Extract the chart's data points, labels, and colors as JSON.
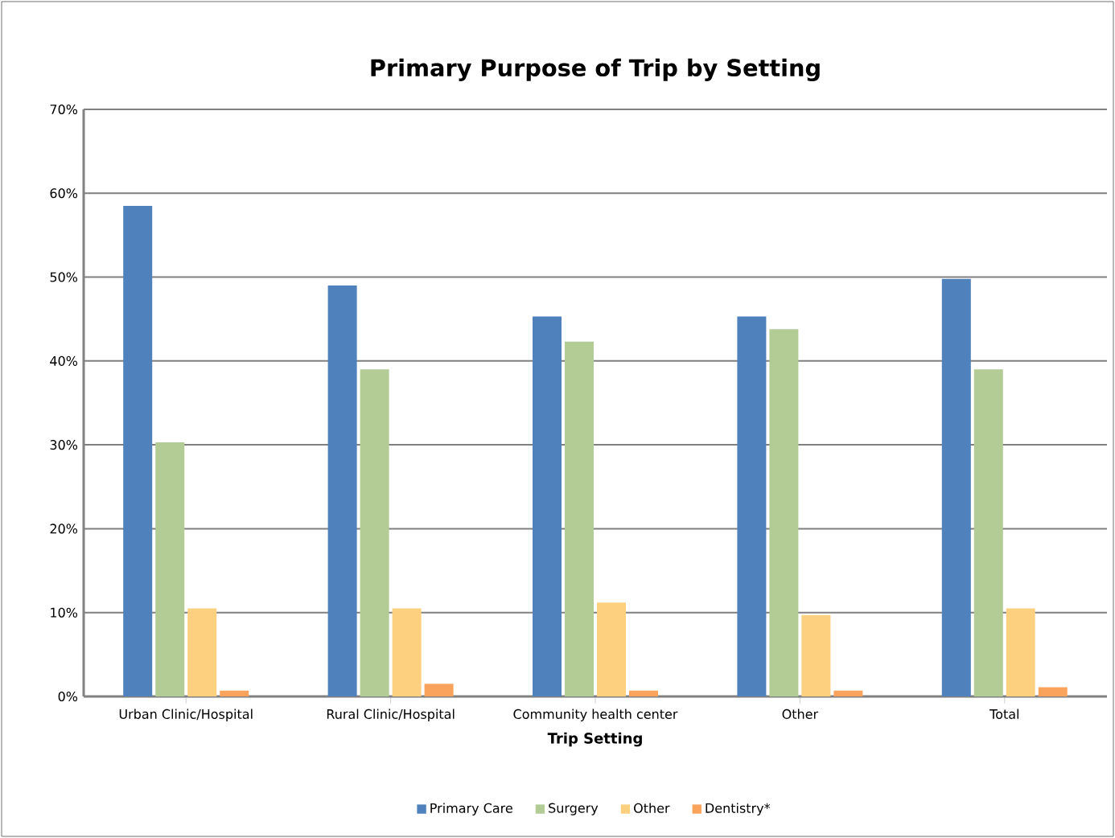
{
  "chart_data": {
    "type": "bar",
    "title": "Primary Purpose of Trip by Setting",
    "xlabel": "Trip Setting",
    "categories": [
      "Urban Clinic/Hospital",
      "Rural Clinic/Hospital",
      "Community health center",
      "Other",
      "Total"
    ],
    "series": [
      {
        "name": "Primary Care",
        "color": "#4f81bd",
        "values": [
          58.5,
          49,
          45.3,
          45.3,
          49.8
        ]
      },
      {
        "name": "Surgery",
        "color": "#b3cc96",
        "values": [
          30.3,
          39,
          42.3,
          43.8,
          39
        ]
      },
      {
        "name": "Other",
        "color": "#fcd07e",
        "values": [
          10.5,
          10.5,
          11.2,
          9.7,
          10.5
        ]
      },
      {
        "name": "Dentistry*",
        "color": "#f9a35c",
        "values": [
          0.7,
          1.5,
          0.7,
          0.7,
          1.1
        ]
      }
    ],
    "ylim": [
      0,
      70
    ],
    "yticks": [
      {
        "value": 0,
        "label": "0%"
      },
      {
        "value": 10,
        "label": "10%"
      },
      {
        "value": 20,
        "label": "20%"
      },
      {
        "value": 30,
        "label": "30%"
      },
      {
        "value": 40,
        "label": "40%"
      },
      {
        "value": 50,
        "label": "50%"
      },
      {
        "value": 60,
        "label": "60%"
      },
      {
        "value": 70,
        "label": "70%"
      }
    ],
    "grid": "y",
    "legend": "bottom"
  }
}
